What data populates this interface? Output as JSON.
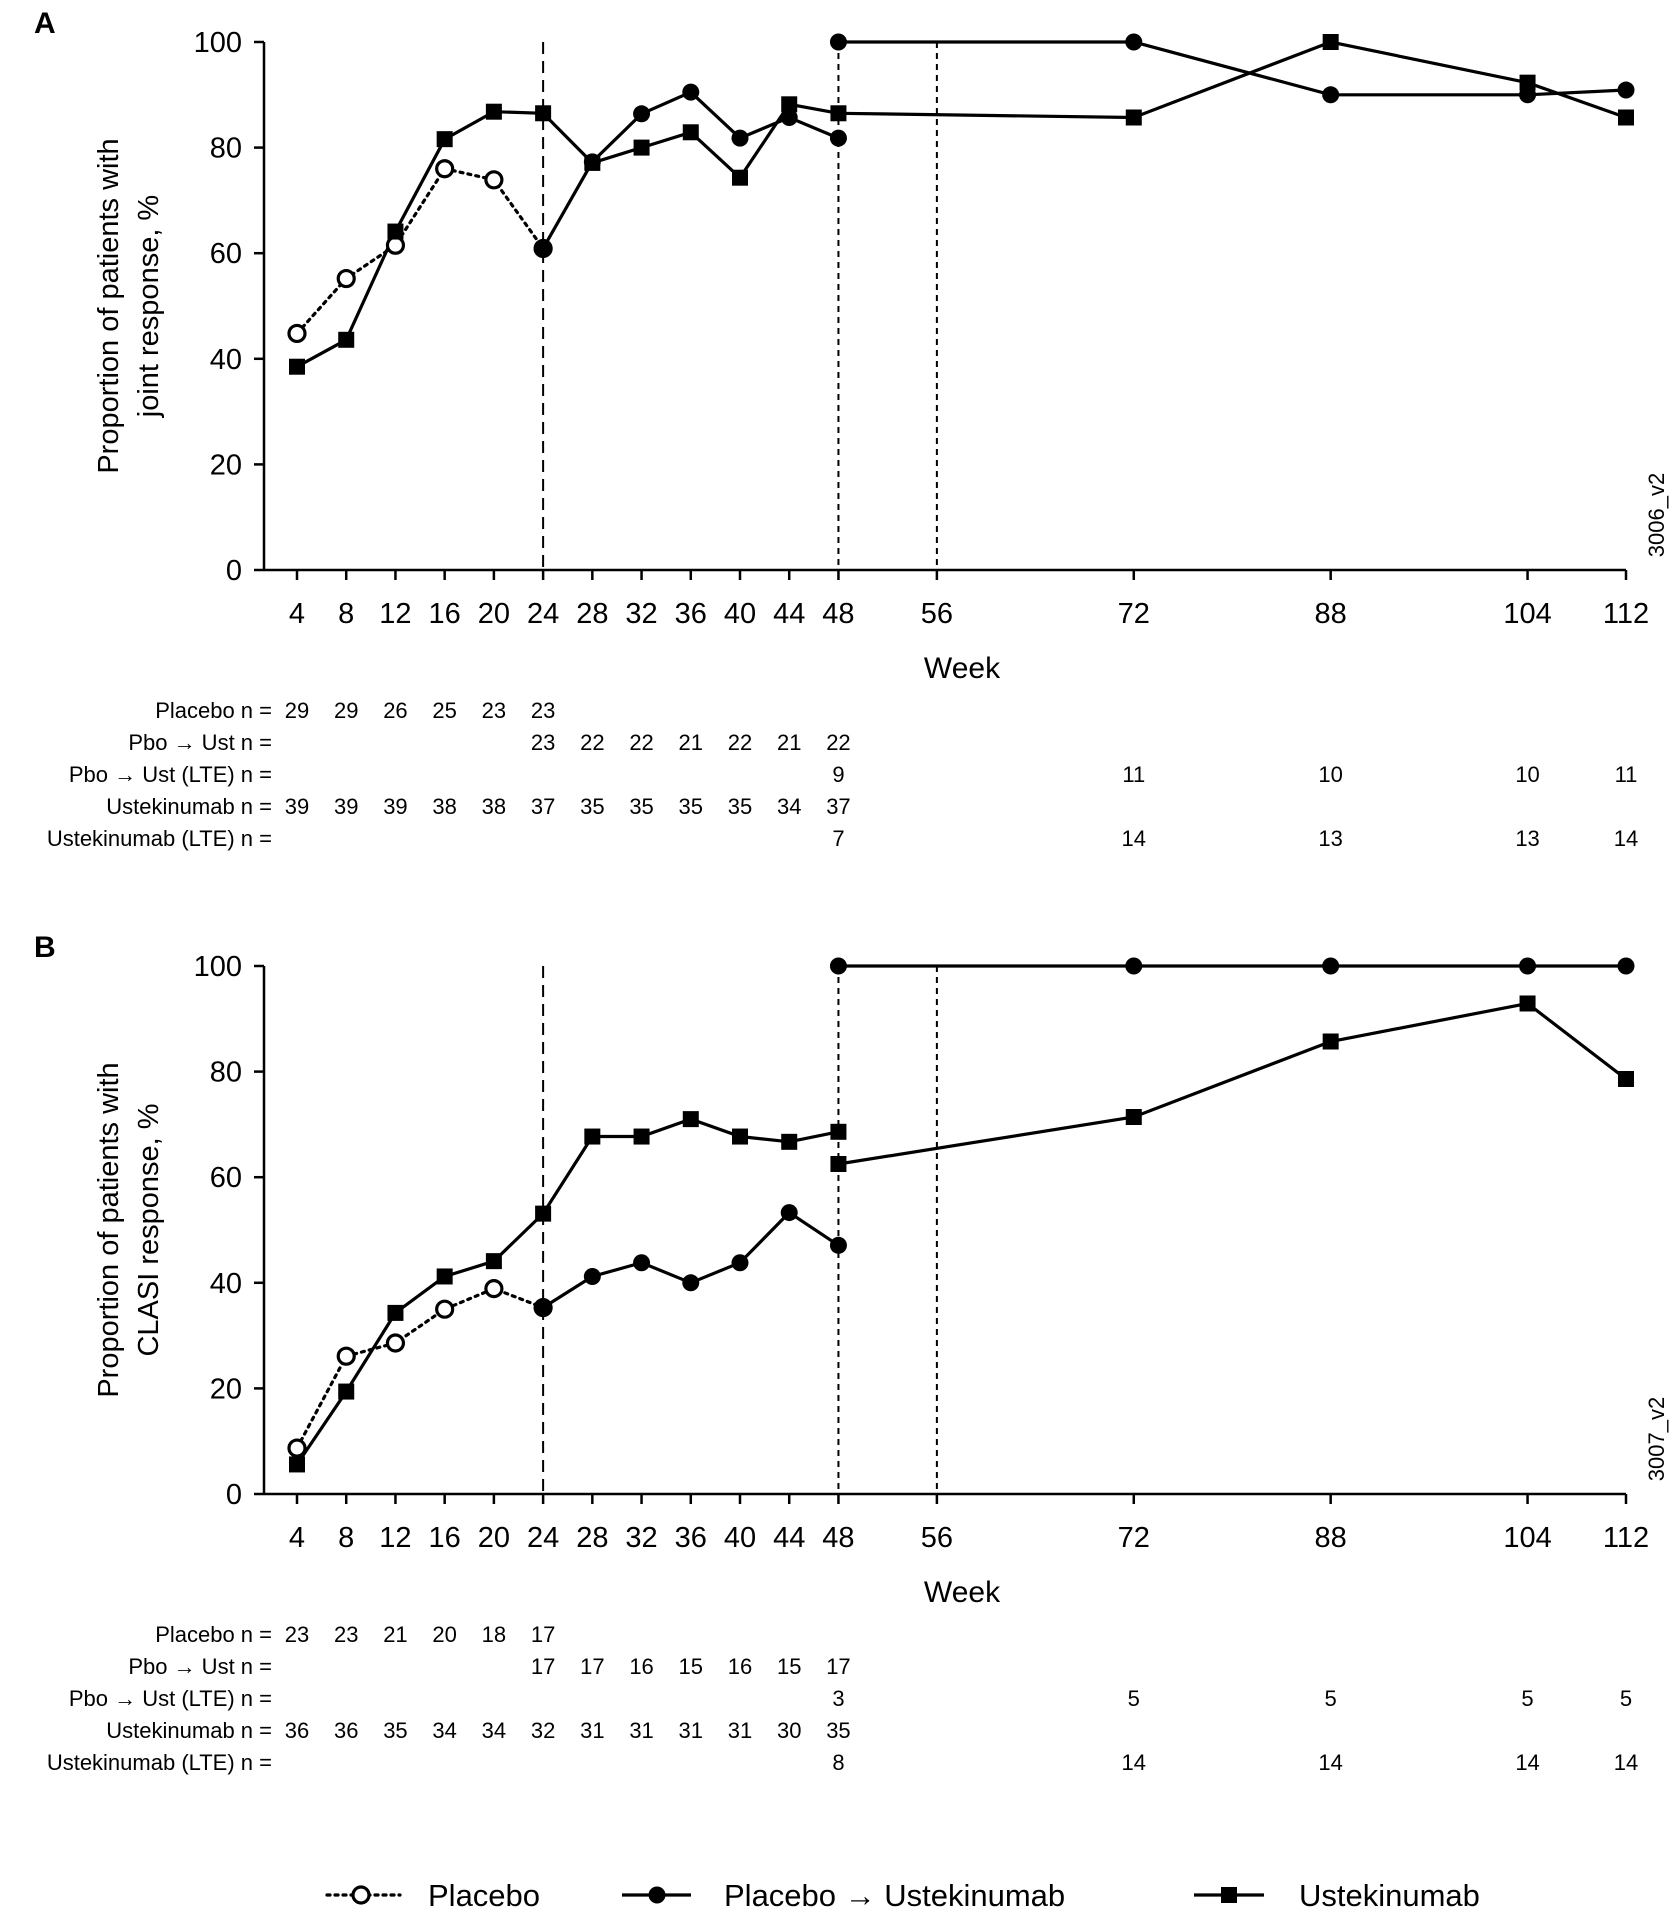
{
  "legend": {
    "items": [
      {
        "name": "Placebo",
        "label": "Placebo",
        "marker": "open-circle",
        "line": "dotted"
      },
      {
        "name": "PboUst",
        "label": "Placebo → Ustekinumab",
        "marker": "filled-circle",
        "line": "solid"
      },
      {
        "name": "Ust",
        "label": "Ustekinumab",
        "marker": "filled-square",
        "line": "solid"
      }
    ]
  },
  "colors": {
    "ink": "#000000",
    "background": "#ffffff"
  },
  "chart_data": [
    {
      "type": "line",
      "panel_label": "A",
      "xlabel": "Week",
      "ylabel_lines": [
        "Proportion of patients with",
        "joint response, %"
      ],
      "code": "3006_v2",
      "x_ticks": [
        4,
        8,
        12,
        16,
        20,
        24,
        28,
        32,
        36,
        40,
        44,
        48,
        56,
        72,
        88,
        104,
        112
      ],
      "y_ticks": [
        0,
        20,
        40,
        60,
        80,
        100
      ],
      "ylim": [
        0,
        100
      ],
      "reference_lines": [
        {
          "week": 24,
          "style": "long-dash"
        },
        {
          "week": 48,
          "style": "short-dash"
        },
        {
          "week": 56,
          "style": "short-dash"
        }
      ],
      "series": [
        {
          "name": "Placebo",
          "marker": "open-circle",
          "line": "dotted",
          "segments": [
            [
              [
                4,
                44.8
              ],
              [
                8,
                55.2
              ],
              [
                12,
                61.5
              ],
              [
                16,
                76.0
              ],
              [
                20,
                73.9
              ],
              [
                24,
                60.9
              ]
            ]
          ]
        },
        {
          "name": "Placebo → Ustekinumab",
          "marker": "filled-circle",
          "line": "solid",
          "segments": [
            [
              [
                24,
                60.9
              ],
              [
                28,
                77.3
              ],
              [
                32,
                86.4
              ],
              [
                36,
                90.5
              ],
              [
                40,
                81.8
              ],
              [
                44,
                85.7
              ],
              [
                48,
                81.8
              ]
            ],
            [
              [
                48,
                100
              ],
              [
                72,
                100
              ],
              [
                88,
                90
              ],
              [
                104,
                90
              ],
              [
                112,
                90.9
              ]
            ]
          ]
        },
        {
          "name": "Ustekinumab",
          "marker": "filled-square",
          "line": "solid",
          "segments": [
            [
              [
                4,
                38.5
              ],
              [
                8,
                43.6
              ],
              [
                12,
                64.1
              ],
              [
                16,
                81.6
              ],
              [
                20,
                86.8
              ],
              [
                24,
                86.5
              ],
              [
                28,
                77.1
              ],
              [
                32,
                80.0
              ],
              [
                36,
                82.9
              ],
              [
                40,
                74.3
              ],
              [
                44,
                88.2
              ],
              [
                48,
                86.5
              ],
              [
                72,
                85.7
              ],
              [
                88,
                100
              ],
              [
                104,
                92.3
              ],
              [
                112,
                85.7
              ]
            ]
          ]
        }
      ],
      "n_table": {
        "rows": [
          {
            "label": "Placebo n =",
            "values": [
              [
                "4",
                "29"
              ],
              [
                "8",
                "29"
              ],
              [
                "12",
                "26"
              ],
              [
                "16",
                "25"
              ],
              [
                "20",
                "23"
              ],
              [
                "24",
                "23"
              ]
            ]
          },
          {
            "label": "Pbo → Ust n =",
            "values": [
              [
                "24",
                "23"
              ],
              [
                "28",
                "22"
              ],
              [
                "32",
                "22"
              ],
              [
                "36",
                "21"
              ],
              [
                "40",
                "22"
              ],
              [
                "44",
                "21"
              ],
              [
                "48",
                "22"
              ]
            ]
          },
          {
            "label": "Pbo → Ust (LTE) n =",
            "values": [
              [
                "48",
                "9"
              ],
              [
                "72",
                "11"
              ],
              [
                "88",
                "10"
              ],
              [
                "104",
                "10"
              ],
              [
                "112",
                "11"
              ]
            ]
          },
          {
            "label": "Ustekinumab n =",
            "values": [
              [
                "4",
                "39"
              ],
              [
                "8",
                "39"
              ],
              [
                "12",
                "39"
              ],
              [
                "16",
                "38"
              ],
              [
                "20",
                "38"
              ],
              [
                "24",
                "37"
              ],
              [
                "28",
                "35"
              ],
              [
                "32",
                "35"
              ],
              [
                "36",
                "35"
              ],
              [
                "40",
                "35"
              ],
              [
                "44",
                "34"
              ],
              [
                "48",
                "37"
              ]
            ]
          },
          {
            "label": "Ustekinumab (LTE) n =",
            "values": [
              [
                "48",
                "7"
              ],
              [
                "72",
                "14"
              ],
              [
                "88",
                "13"
              ],
              [
                "104",
                "13"
              ],
              [
                "112",
                "14"
              ]
            ]
          }
        ]
      }
    },
    {
      "type": "line",
      "panel_label": "B",
      "xlabel": "Week",
      "ylabel_lines": [
        "Proportion of patients with",
        "CLASI response, %"
      ],
      "code": "3007_v2",
      "x_ticks": [
        4,
        8,
        12,
        16,
        20,
        24,
        28,
        32,
        36,
        40,
        44,
        48,
        56,
        72,
        88,
        104,
        112
      ],
      "y_ticks": [
        0,
        20,
        40,
        60,
        80,
        100
      ],
      "ylim": [
        0,
        100
      ],
      "reference_lines": [
        {
          "week": 24,
          "style": "long-dash"
        },
        {
          "week": 48,
          "style": "short-dash"
        },
        {
          "week": 56,
          "style": "short-dash"
        }
      ],
      "series": [
        {
          "name": "Placebo",
          "marker": "open-circle",
          "line": "dotted",
          "segments": [
            [
              [
                4,
                8.7
              ],
              [
                8,
                26.1
              ],
              [
                12,
                28.6
              ],
              [
                16,
                35.0
              ],
              [
                20,
                38.9
              ],
              [
                24,
                35.3
              ]
            ]
          ]
        },
        {
          "name": "Placebo → Ustekinumab",
          "marker": "filled-circle",
          "line": "solid",
          "segments": [
            [
              [
                24,
                35.3
              ],
              [
                28,
                41.2
              ],
              [
                32,
                43.8
              ],
              [
                36,
                40.0
              ],
              [
                40,
                43.8
              ],
              [
                44,
                53.3
              ],
              [
                48,
                47.1
              ]
            ],
            [
              [
                48,
                100
              ],
              [
                72,
                100
              ],
              [
                88,
                100
              ],
              [
                104,
                100
              ],
              [
                112,
                100
              ]
            ]
          ]
        },
        {
          "name": "Ustekinumab",
          "marker": "filled-square",
          "line": "solid",
          "segments": [
            [
              [
                4,
                5.6
              ],
              [
                8,
                19.4
              ],
              [
                12,
                34.3
              ],
              [
                16,
                41.2
              ],
              [
                20,
                44.1
              ],
              [
                24,
                53.1
              ],
              [
                28,
                67.7
              ],
              [
                32,
                67.7
              ],
              [
                36,
                71.0
              ],
              [
                40,
                67.7
              ],
              [
                44,
                66.7
              ],
              [
                48,
                68.6
              ]
            ],
            [
              [
                48,
                62.5
              ],
              [
                72,
                71.4
              ],
              [
                88,
                85.7
              ],
              [
                104,
                92.9
              ],
              [
                112,
                78.6
              ]
            ]
          ]
        }
      ],
      "n_table": {
        "rows": [
          {
            "label": "Placebo n =",
            "values": [
              [
                "4",
                "23"
              ],
              [
                "8",
                "23"
              ],
              [
                "12",
                "21"
              ],
              [
                "16",
                "20"
              ],
              [
                "20",
                "18"
              ],
              [
                "24",
                "17"
              ]
            ]
          },
          {
            "label": "Pbo → Ust n =",
            "values": [
              [
                "24",
                "17"
              ],
              [
                "28",
                "17"
              ],
              [
                "32",
                "16"
              ],
              [
                "36",
                "15"
              ],
              [
                "40",
                "16"
              ],
              [
                "44",
                "15"
              ],
              [
                "48",
                "17"
              ]
            ]
          },
          {
            "label": "Pbo → Ust (LTE) n =",
            "values": [
              [
                "48",
                "3"
              ],
              [
                "72",
                "5"
              ],
              [
                "88",
                "5"
              ],
              [
                "104",
                "5"
              ],
              [
                "112",
                "5"
              ]
            ]
          },
          {
            "label": "Ustekinumab n =",
            "values": [
              [
                "4",
                "36"
              ],
              [
                "8",
                "36"
              ],
              [
                "12",
                "35"
              ],
              [
                "16",
                "34"
              ],
              [
                "20",
                "34"
              ],
              [
                "24",
                "32"
              ],
              [
                "28",
                "31"
              ],
              [
                "32",
                "31"
              ],
              [
                "36",
                "31"
              ],
              [
                "40",
                "31"
              ],
              [
                "44",
                "30"
              ],
              [
                "48",
                "35"
              ]
            ]
          },
          {
            "label": "Ustekinumab (LTE) n =",
            "values": [
              [
                "48",
                "8"
              ],
              [
                "72",
                "14"
              ],
              [
                "88",
                "14"
              ],
              [
                "104",
                "14"
              ],
              [
                "112",
                "14"
              ]
            ]
          }
        ]
      }
    }
  ]
}
